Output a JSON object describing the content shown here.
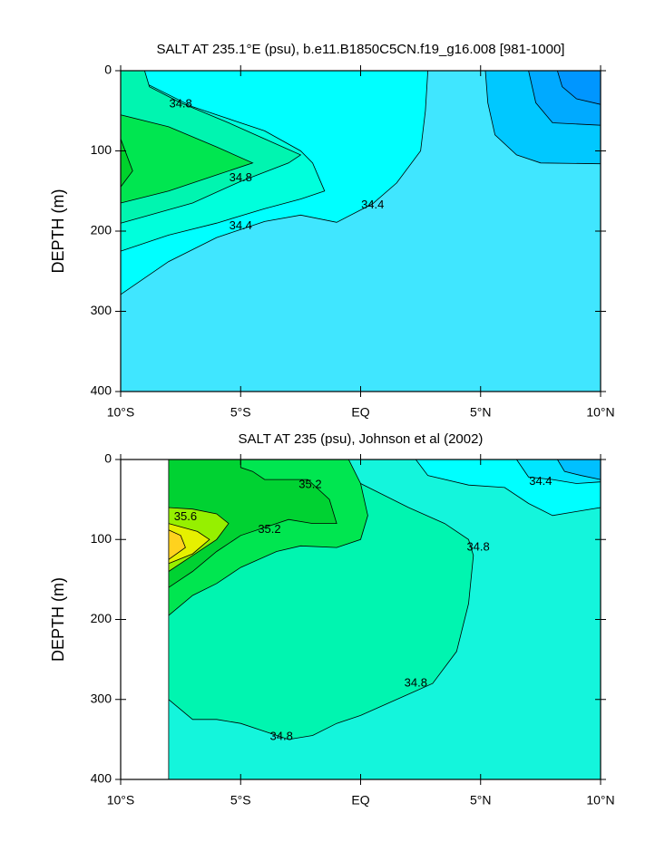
{
  "chart_data": [
    {
      "type": "contour",
      "title": "SALT AT 235.1°E (psu), b.e11.B1850C5CN.f19_g16.008 [981-1000]",
      "ylabel": "DEPTH (m)",
      "xlim": [
        -10,
        10
      ],
      "ylim": [
        400,
        0
      ],
      "xticks": [
        {
          "value": -10,
          "label": "10°S"
        },
        {
          "value": -5,
          "label": "5°S"
        },
        {
          "value": 0,
          "label": "EQ"
        },
        {
          "value": 5,
          "label": "5°N"
        },
        {
          "value": 10,
          "label": "10°N"
        }
      ],
      "yticks": [
        0,
        100,
        200,
        300,
        400
      ],
      "regions": [
        {
          "color": "#40e6ff",
          "x": [
            -10,
            10,
            10,
            -10
          ],
          "y": [
            0,
            0,
            400,
            400
          ]
        },
        {
          "color": "#00ffff",
          "x": [
            -10,
            -8,
            -6,
            -4,
            -2.5,
            -1,
            0.5,
            1.5,
            2.5,
            2.7,
            2.8,
            -10
          ],
          "y": [
            279,
            238,
            208,
            188,
            180,
            189,
            166,
            140,
            100,
            50,
            0,
            0
          ]
        },
        {
          "color": "#00ffdc",
          "x": [
            -10,
            -8,
            -6,
            -4,
            -2.5,
            -1.5,
            -2,
            -2.5,
            -4,
            -7,
            -9,
            -9.2,
            -10
          ],
          "y": [
            225,
            205,
            190,
            172,
            160,
            150,
            115,
            100,
            75,
            45,
            15,
            0,
            0
          ]
        },
        {
          "color": "#00f5b0",
          "x": [
            -10,
            -7,
            -5,
            -3,
            -2.5,
            -4,
            -5.5,
            -7.5,
            -8.8,
            -9,
            -10
          ],
          "y": [
            190,
            165,
            138,
            115,
            105,
            85,
            65,
            40,
            20,
            0,
            0
          ]
        },
        {
          "color": "#00e650",
          "x": [
            -10,
            -8,
            -6,
            -4.5,
            -6,
            -8,
            -10
          ],
          "y": [
            165,
            150,
            130,
            115,
            95,
            70,
            55
          ]
        },
        {
          "color": "#00d22c",
          "x": [
            -10,
            -9.5,
            -10
          ],
          "y": [
            145,
            125,
            85
          ]
        },
        {
          "color": "#00c8ff",
          "x": [
            5.2,
            5.3,
            5.6,
            6.5,
            7.5,
            10,
            10
          ],
          "y": [
            0,
            40,
            80,
            105,
            115,
            116,
            0
          ]
        },
        {
          "color": "#00aaff",
          "x": [
            7,
            7.3,
            8,
            10,
            10
          ],
          "y": [
            0,
            40,
            65,
            68,
            0
          ]
        },
        {
          "color": "#0096ff",
          "x": [
            8.2,
            8.4,
            9,
            10,
            10
          ],
          "y": [
            0,
            20,
            35,
            42,
            0
          ]
        }
      ],
      "contour_labels": [
        {
          "value": 34.8,
          "x": -7.5,
          "y": 42
        },
        {
          "value": 34.8,
          "x": -5,
          "y": 134
        },
        {
          "value": 34.4,
          "x": -5,
          "y": 194
        },
        {
          "value": 34.4,
          "x": 0.5,
          "y": 168
        }
      ]
    },
    {
      "type": "contour",
      "title": "SALT AT 235 (psu), Johnson et al (2002)",
      "ylabel": "DEPTH (m)",
      "xlim": [
        -10,
        10
      ],
      "ylim": [
        400,
        0
      ],
      "xticks": [
        {
          "value": -10,
          "label": "10°S"
        },
        {
          "value": -5,
          "label": "5°S"
        },
        {
          "value": 0,
          "label": "EQ"
        },
        {
          "value": 5,
          "label": "5°N"
        },
        {
          "value": 10,
          "label": "10°N"
        }
      ],
      "yticks": [
        0,
        100,
        200,
        300,
        400
      ],
      "regions": [
        {
          "color": "#14f5dc",
          "x": [
            -8,
            10,
            10,
            -8
          ],
          "y": [
            0,
            0,
            400,
            400
          ]
        },
        {
          "color": "#00f5b0",
          "x": [
            -8,
            -7,
            -6,
            -5,
            -4,
            -3,
            -2,
            -1,
            0,
            1.5,
            3,
            4,
            4.5,
            4.7,
            4.5,
            3.5,
            2,
            0,
            -1.5,
            -8
          ],
          "y": [
            300,
            325,
            325,
            330,
            340,
            350,
            345,
            330,
            320,
            300,
            280,
            240,
            180,
            120,
            100,
            80,
            60,
            30,
            0,
            0
          ]
        },
        {
          "color": "#00ffff",
          "x": [
            2.3,
            2.8,
            4.5,
            6,
            7,
            8,
            9,
            10,
            10
          ],
          "y": [
            0,
            20,
            32,
            35,
            55,
            70,
            65,
            60,
            0
          ]
        },
        {
          "color": "#00e6ff",
          "x": [
            6.5,
            7,
            8,
            9,
            10,
            10
          ],
          "y": [
            0,
            22,
            25,
            30,
            28,
            0
          ]
        },
        {
          "color": "#00c0ff",
          "x": [
            8.2,
            8.5,
            9.2,
            10,
            10
          ],
          "y": [
            0,
            15,
            20,
            25,
            0
          ]
        },
        {
          "color": "#00e650",
          "x": [
            -8,
            -7,
            -6,
            -5,
            -3.5,
            -2.5,
            -1,
            0,
            0.3,
            0,
            -0.5,
            -8
          ],
          "y": [
            195,
            170,
            155,
            135,
            115,
            108,
            110,
            100,
            70,
            30,
            0,
            0
          ]
        },
        {
          "color": "#00d232",
          "x": [
            -8,
            -7,
            -6,
            -5,
            -4,
            -3,
            -2,
            -1,
            -1.3,
            -2.2,
            -4,
            -4.5,
            -5,
            -5,
            -8
          ],
          "y": [
            160,
            140,
            115,
            95,
            85,
            75,
            80,
            80,
            50,
            25,
            25,
            15,
            10,
            0,
            0
          ]
        },
        {
          "color": "#96f000",
          "x": [
            -8,
            -7,
            -6,
            -5.5,
            -6,
            -7,
            -8
          ],
          "y": [
            140,
            120,
            100,
            80,
            68,
            62,
            60
          ]
        },
        {
          "color": "#e6f000",
          "x": [
            -8,
            -7,
            -6.3,
            -6.8,
            -8
          ],
          "y": [
            130,
            118,
            100,
            90,
            80
          ]
        },
        {
          "color": "#ffd21e",
          "x": [
            -8,
            -7.3,
            -7.5,
            -8
          ],
          "y": [
            125,
            110,
            95,
            88
          ]
        }
      ],
      "contour_labels": [
        {
          "value": 35.2,
          "x": -2.1,
          "y": 32
        },
        {
          "value": 35.2,
          "x": -3.8,
          "y": 88
        },
        {
          "value": 35.6,
          "x": -7.3,
          "y": 72
        },
        {
          "value": 34.8,
          "x": 4.9,
          "y": 110
        },
        {
          "value": 34.8,
          "x": 2.3,
          "y": 280
        },
        {
          "value": 34.8,
          "x": -3.3,
          "y": 347
        },
        {
          "value": 34.4,
          "x": 7.5,
          "y": 28
        }
      ]
    }
  ]
}
